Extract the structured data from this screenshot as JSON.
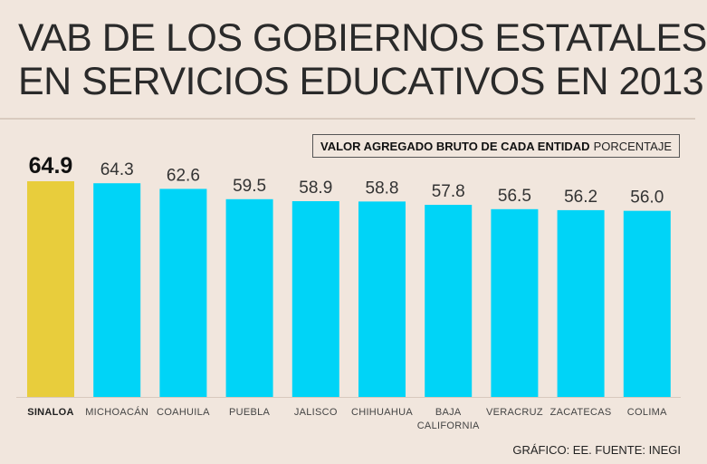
{
  "title": {
    "line1": "VAB DE LOS GOBIERNOS ESTATALES",
    "line2": "EN SERVICIOS EDUCATIVOS EN 2013"
  },
  "legend": {
    "bold": "VALOR AGREGADO BRUTO DE CADA ENTIDAD",
    "unit": "PORCENTAJE"
  },
  "source": "GRÁFICO: EE. FUENTE: INEGI",
  "colors": {
    "highlight": "#e8cd3c",
    "bar": "#00d4f7",
    "background": "#f1e6dd",
    "text": "#222222"
  },
  "chart_data": {
    "type": "bar",
    "title": "VAB DE LOS GOBIERNOS ESTATALES EN SERVICIOS EDUCATIVOS EN 2013",
    "ylabel": "PORCENTAJE",
    "categories": [
      [
        "SINALOA"
      ],
      [
        "MICHOACÁN"
      ],
      [
        "COAHUILA"
      ],
      [
        "PUEBLA"
      ],
      [
        "JALISCO"
      ],
      [
        "CHIHUAHUA"
      ],
      [
        "BAJA",
        "CALIFORNIA"
      ],
      [
        "VERACRUZ"
      ],
      [
        "ZACATECAS"
      ],
      [
        "COLIMA"
      ]
    ],
    "values": [
      64.9,
      64.3,
      62.6,
      59.5,
      58.9,
      58.8,
      57.8,
      56.5,
      56.2,
      56.0
    ],
    "value_labels": [
      "64.9",
      "64.3",
      "62.6",
      "59.5",
      "58.9",
      "58.8",
      "57.8",
      "56.5",
      "56.2",
      "56.0"
    ],
    "highlight_index": 0,
    "ylim": [
      0,
      64.9
    ],
    "grid": false
  }
}
